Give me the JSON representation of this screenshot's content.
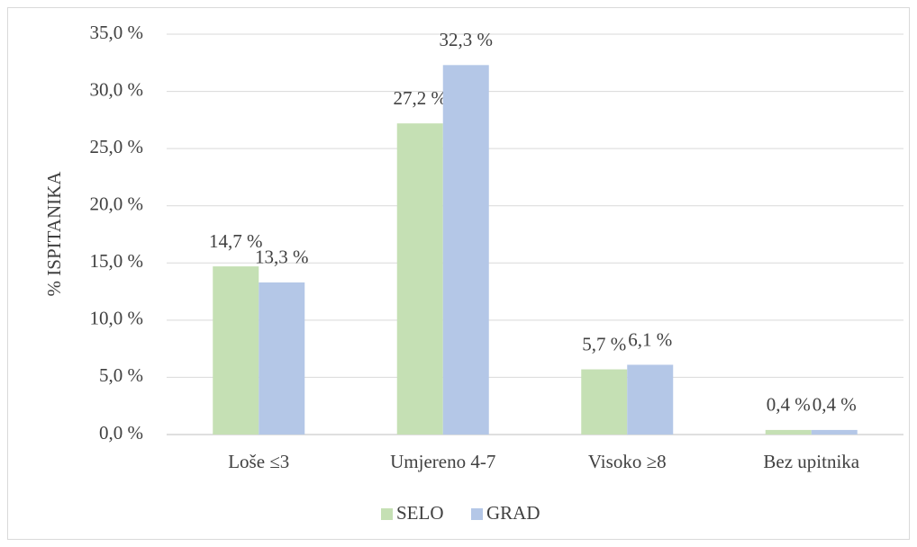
{
  "chart_data": {
    "type": "bar",
    "categories": [
      "Loše ≤3",
      "Umjereno 4-7",
      "Visoko ≥8",
      "Bez upitnika"
    ],
    "series": [
      {
        "name": "SELO",
        "color": "#c5e0b4",
        "values": [
          14.7,
          27.2,
          5.7,
          0.4
        ],
        "value_labels": [
          "14,7 %",
          "27,2 %",
          "5,7 %",
          "0,4 %"
        ]
      },
      {
        "name": "GRAD",
        "color": "#b4c7e7",
        "values": [
          13.3,
          32.3,
          6.1,
          0.4
        ],
        "value_labels": [
          "13,3 %",
          "32,3 %",
          "6,1 %",
          "0,4 %"
        ]
      }
    ],
    "y_label": "% ISPITANIKA",
    "ylim": [
      0,
      35
    ],
    "yticks": [
      {
        "value": 0,
        "label": "0,0 %"
      },
      {
        "value": 5,
        "label": "5,0 %"
      },
      {
        "value": 10,
        "label": "10,0 %"
      },
      {
        "value": 15,
        "label": "15,0 %"
      },
      {
        "value": 20,
        "label": "20,0 %"
      },
      {
        "value": 25,
        "label": "25,0 %"
      },
      {
        "value": 30,
        "label": "30,0 %"
      },
      {
        "value": 35,
        "label": "35,0 %"
      }
    ],
    "grid": true,
    "legend": "bottom"
  }
}
